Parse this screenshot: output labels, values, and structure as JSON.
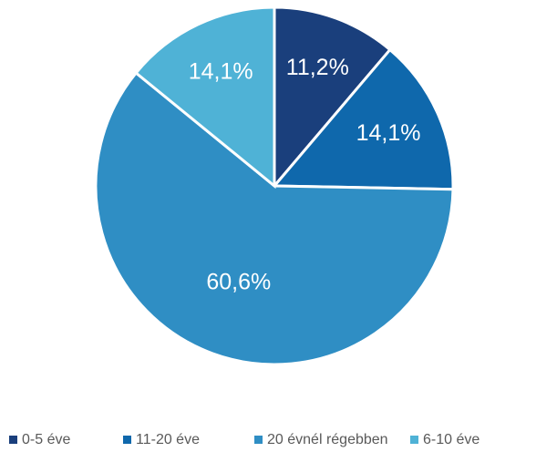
{
  "chart_data": {
    "type": "pie",
    "categories": [
      "0-5 éve",
      "11-20 éve",
      "20 évnél régebben",
      "6-10 éve"
    ],
    "values": [
      11.2,
      14.1,
      60.6,
      14.1
    ],
    "value_labels": [
      "11,2%",
      "14,1%",
      "60,6%",
      "14,1%"
    ],
    "colors": [
      "#1a3f7c",
      "#0f68ac",
      "#2f8ec4",
      "#4fb2d6"
    ],
    "legend": "bottom"
  }
}
